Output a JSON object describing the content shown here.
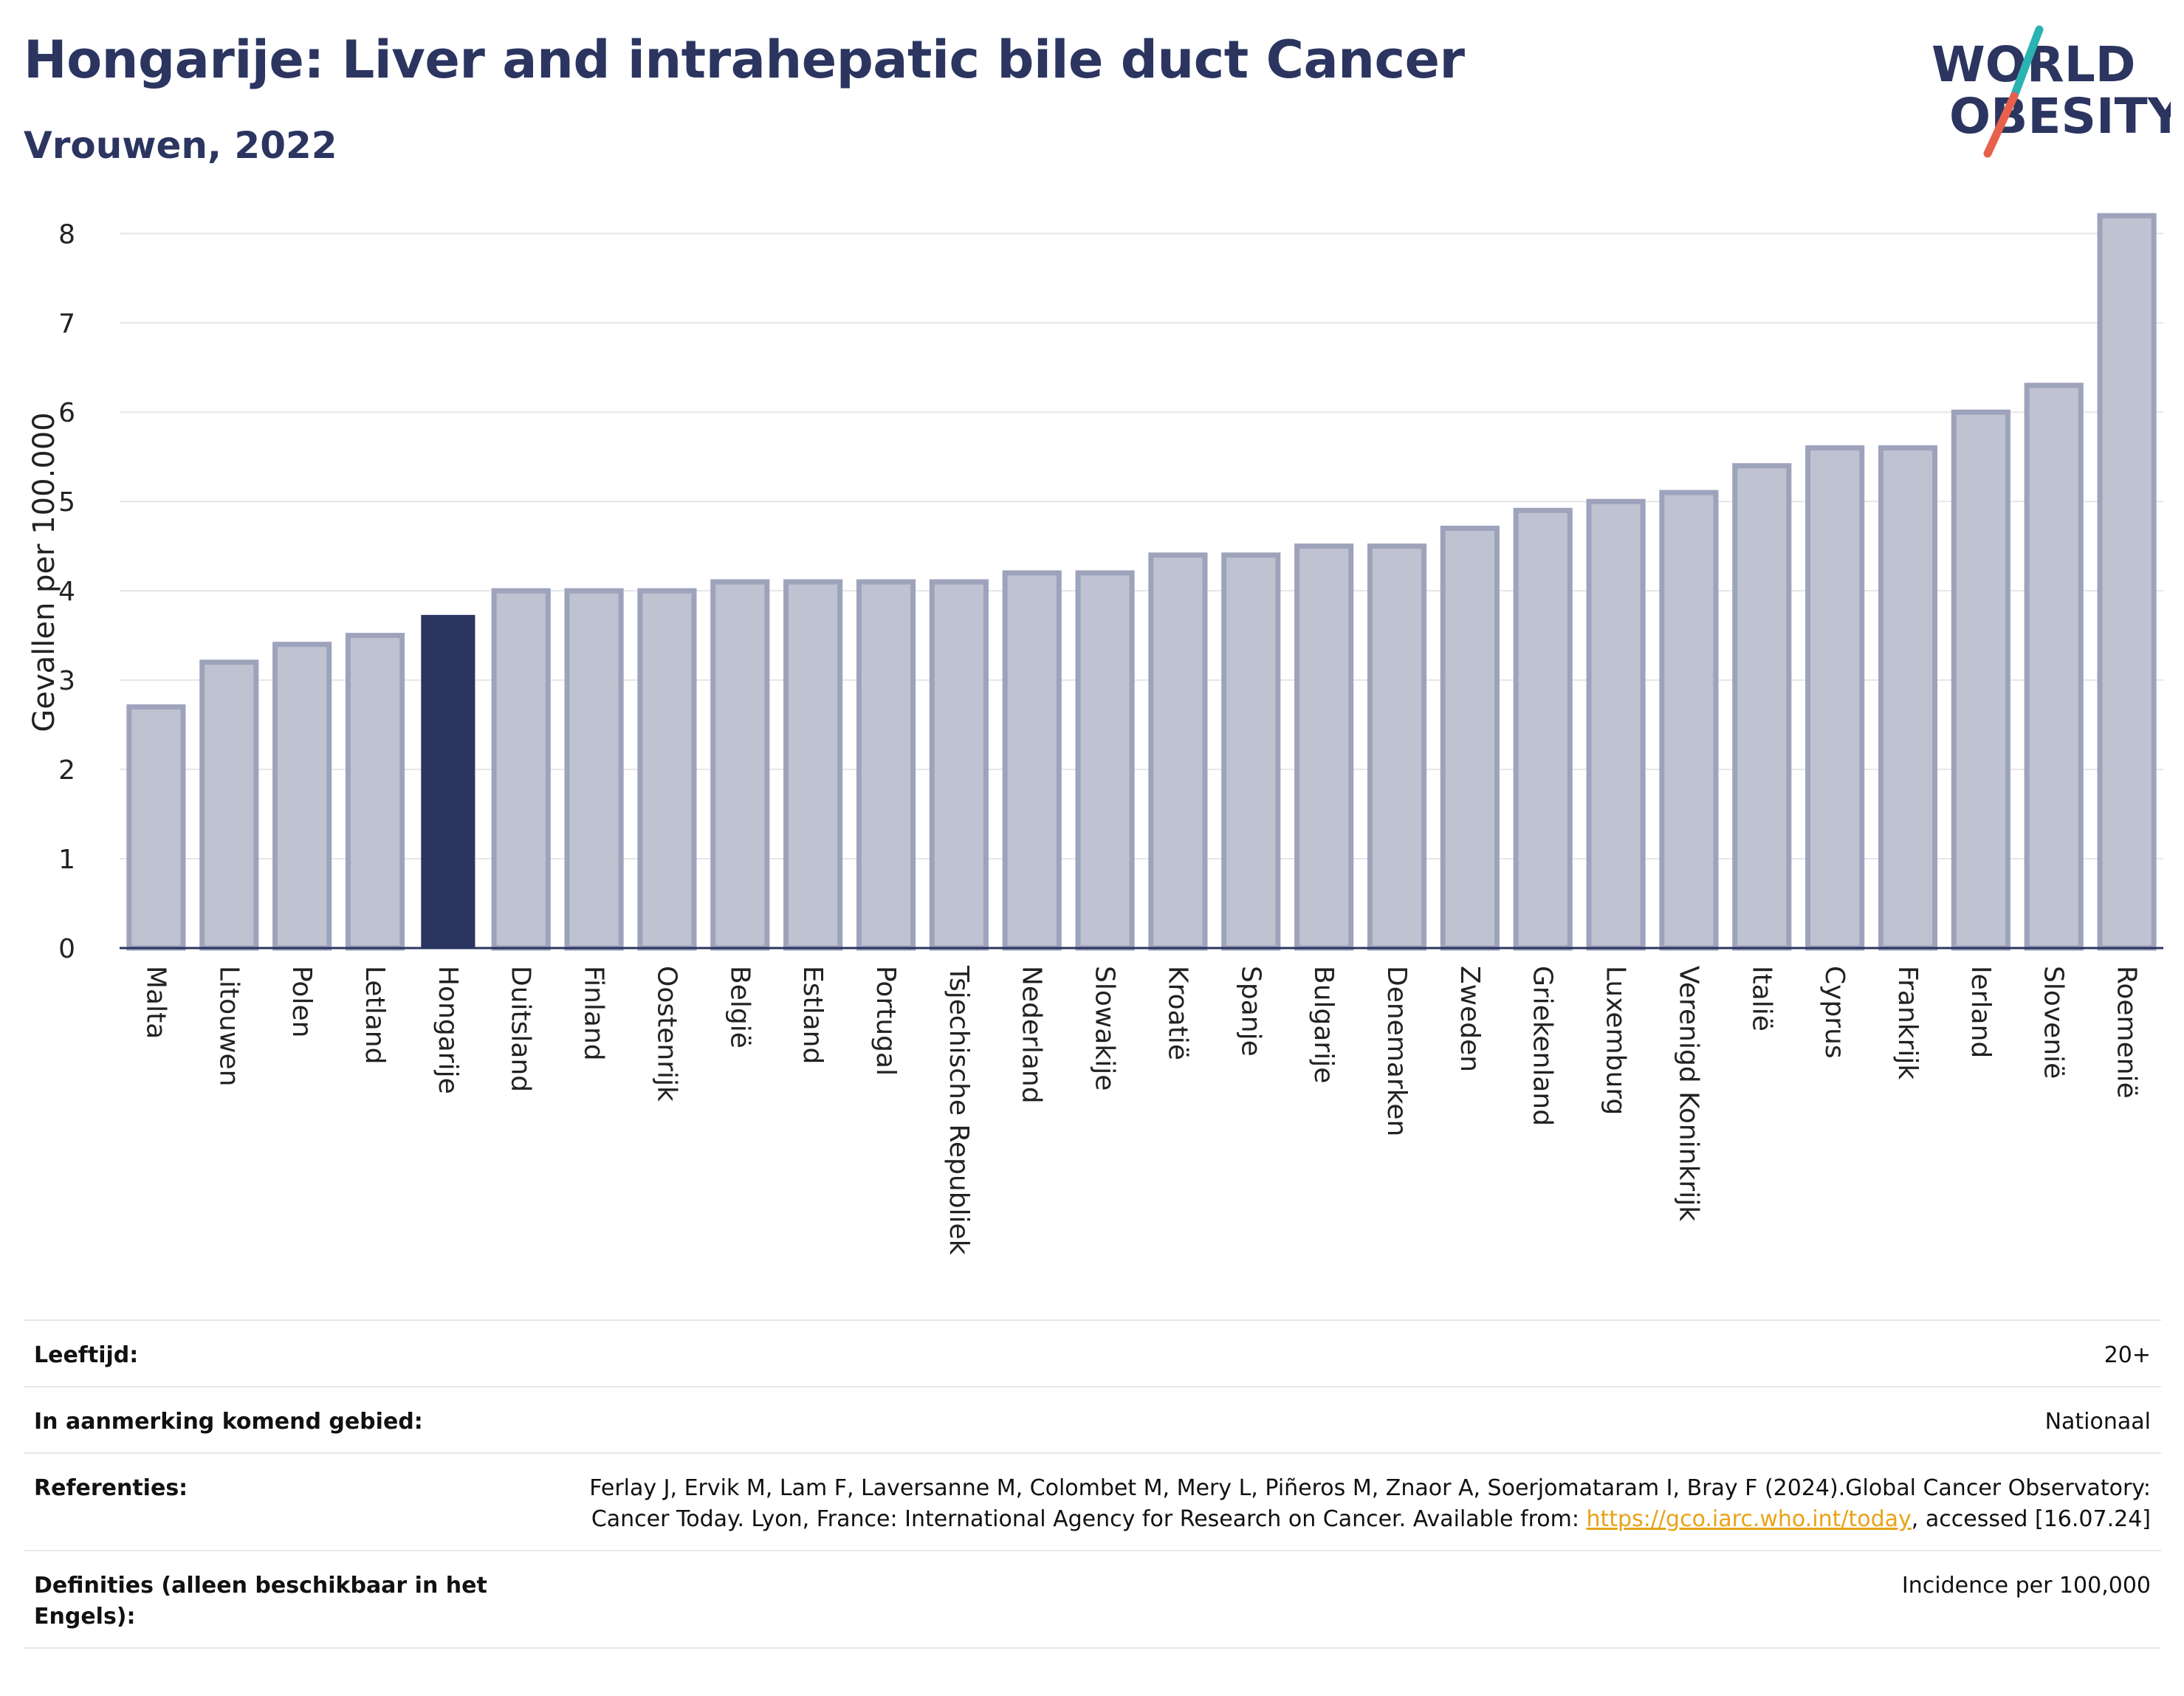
{
  "header": {
    "title": "Hongarije: Liver and intrahepatic bile duct Cancer",
    "subtitle": "Vrouwen, 2022"
  },
  "logo": {
    "line1": "WORLD",
    "line2": "OBESITY",
    "icon": "world-obesity-logo"
  },
  "colors": {
    "title": "#2b3560",
    "highlight_bar": "#2b3560",
    "bar_fill": "#bfc2d0",
    "bar_outline": "#9ea3bc",
    "logo_teal": "#2bb3b1",
    "logo_red": "#e8604c",
    "link": "#e8a317"
  },
  "chart_data": {
    "type": "bar",
    "ylabel": "Gevallen per 100.000",
    "xlabel": "",
    "ylim": [
      0,
      8.3
    ],
    "yticks": [
      0,
      1,
      2,
      3,
      4,
      5,
      6,
      7,
      8
    ],
    "grid": true,
    "highlight": "Hongarije",
    "categories": [
      "Malta",
      "Litouwen",
      "Polen",
      "Letland",
      "Hongarije",
      "Duitsland",
      "Finland",
      "Oostenrijk",
      "België",
      "Estland",
      "Portugal",
      "Tsjechische Republiek",
      "Nederland",
      "Slowakije",
      "Kroatië",
      "Spanje",
      "Bulgarije",
      "Denemarken",
      "Zweden",
      "Griekenland",
      "Luxemburg",
      "Verenigd Koninkrijk",
      "Italië",
      "Cyprus",
      "Frankrijk",
      "Ierland",
      "Slovenië",
      "Roemenië"
    ],
    "values": [
      2.7,
      3.2,
      3.4,
      3.5,
      3.73,
      4.0,
      4.0,
      4.0,
      4.1,
      4.1,
      4.1,
      4.1,
      4.2,
      4.2,
      4.4,
      4.4,
      4.5,
      4.5,
      4.7,
      4.9,
      5.0,
      5.1,
      5.4,
      5.6,
      5.6,
      6.0,
      6.3,
      8.2
    ]
  },
  "metadata": {
    "rows": [
      {
        "label": "Leeftijd:",
        "value": "20+"
      },
      {
        "label": "In aanmerking komend gebied:",
        "value": "Nationaal"
      },
      {
        "label": "Referenties:",
        "value_before": "Ferlay J, Ervik M, Lam F, Laversanne M, Colombet M, Mery L, Piñeros M, Znaor A, Soerjomataram I, Bray F (2024).Global Cancer Observatory: Cancer Today. Lyon, France: International Agency for Research on Cancer. Available from: ",
        "link": "https://gco.iarc.who.int/today",
        "value_after": ", accessed [16.07.24]"
      },
      {
        "label": "Definities (alleen beschikbaar in het Engels):",
        "value": "Incidence per 100,000"
      }
    ]
  }
}
